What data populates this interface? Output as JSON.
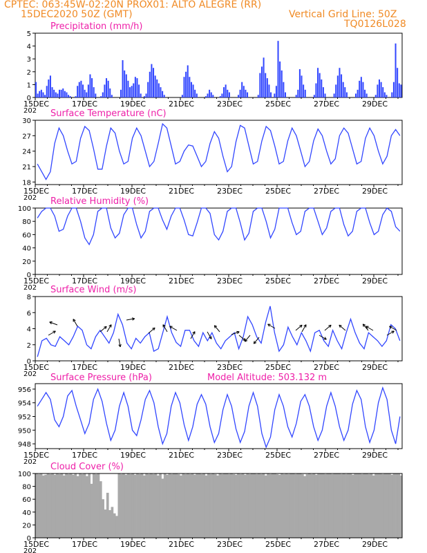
{
  "header": {
    "line1": "CPTEC:  063:45W-02:20N  PROX01: ALTO ALEGRE (RR)",
    "line2": "15DEC2020 50Z (GMT)",
    "grid_note": "Vertical Grid Line: 50Z",
    "code": "TQ0126L028"
  },
  "x_axis": {
    "labels": [
      "15DEC",
      "17DEC",
      "19DEC",
      "21DEC",
      "23DEC",
      "25DEC",
      "27DEC",
      "29DEC"
    ],
    "sub_label": "202"
  },
  "colors": {
    "series": "#3146ff",
    "title": "#ee1fa8",
    "header": "#f08a24",
    "cloud": "#a9a9a9"
  },
  "chart_data": [
    {
      "type": "bar",
      "title": "Precipitation (mm/h)",
      "ylim": [
        0,
        5
      ],
      "yticks": [
        0,
        1,
        2,
        3,
        4,
        5
      ],
      "x_range": [
        "15DEC",
        "30DEC"
      ],
      "values": [
        1.2,
        0.3,
        0.5,
        0.6,
        0.4,
        0.2,
        0.9,
        1.4,
        1.7,
        0.8,
        0.6,
        0.4,
        0.3,
        0.6,
        0.6,
        0.7,
        0.5,
        0.4,
        0.2,
        0.1,
        0.0,
        0.0,
        0.1,
        0.9,
        1.2,
        1.3,
        1.0,
        0.6,
        0.4,
        1.0,
        1.8,
        1.5,
        0.8,
        0.3,
        0.0,
        0.0,
        0.1,
        0.4,
        1.0,
        1.5,
        1.3,
        0.7,
        0.2,
        0.0,
        0.0,
        0.0,
        0.0,
        0.6,
        2.9,
        2.1,
        1.8,
        1.3,
        0.8,
        0.9,
        1.1,
        1.6,
        1.5,
        1.0,
        0.3,
        0.0,
        0.1,
        0.3,
        1.2,
        2.0,
        2.6,
        2.3,
        1.7,
        1.4,
        1.1,
        0.8,
        0.5,
        0.2,
        0.0,
        0.0,
        0.0,
        0.0,
        0.0,
        0.0,
        0.0,
        0.0,
        0.0,
        0.2,
        1.6,
        2.0,
        2.5,
        1.6,
        1.2,
        1.0,
        0.6,
        0.3,
        0.0,
        0.0,
        0.0,
        0.0,
        0.1,
        0.3,
        0.6,
        0.4,
        0.2,
        0.0,
        0.0,
        0.0,
        0.1,
        0.3,
        0.8,
        1.0,
        0.6,
        0.4,
        0.0,
        0.0,
        0.0,
        0.0,
        0.2,
        0.6,
        1.2,
        0.9,
        0.6,
        0.4,
        0.0,
        0.0,
        0.0,
        0.0,
        0.0,
        0.2,
        1.9,
        2.4,
        3.1,
        1.9,
        1.5,
        1.0,
        0.4,
        0.0,
        0.3,
        0.9,
        4.4,
        2.8,
        2.1,
        1.2,
        0.4,
        0.0,
        0.0,
        0.0,
        0.0,
        0.0,
        0.2,
        0.6,
        2.2,
        1.7,
        1.0,
        0.6,
        0.0,
        0.0,
        0.0,
        0.0,
        0.2,
        1.1,
        2.3,
        1.9,
        1.4,
        0.8,
        0.3,
        0.0,
        0.0,
        0.0,
        0.0,
        0.3,
        1.0,
        1.7,
        2.3,
        1.8,
        1.2,
        0.8,
        0.4,
        0.0,
        0.0,
        0.0,
        0.0,
        0.3,
        0.6,
        1.3,
        1.6,
        1.2,
        0.6,
        0.3,
        0.0,
        0.0,
        0.0,
        0.0,
        0.2,
        1.0,
        1.4,
        1.2,
        0.8,
        0.4,
        0.2,
        0.0,
        0.0,
        0.4,
        1.2,
        4.2,
        2.3,
        1.1,
        1.0
      ]
    },
    {
      "type": "line",
      "title": "Surface Temperature (nC)",
      "ylim": [
        17.5,
        30
      ],
      "yticks": [
        18,
        21,
        24,
        27,
        30
      ],
      "x_range": [
        "15DEC",
        "30DEC"
      ],
      "values": [
        21.5,
        20,
        18.5,
        20,
        25.5,
        28.5,
        27,
        24,
        21.5,
        22,
        26.5,
        28.8,
        28,
        24.5,
        20.5,
        20.5,
        25,
        28.5,
        27.5,
        24,
        21.5,
        22,
        26.5,
        28.5,
        27,
        24,
        21,
        22,
        25.5,
        29.3,
        28.5,
        25,
        21.5,
        22,
        24,
        25.2,
        25,
        23,
        21,
        22,
        25.5,
        27.8,
        26.5,
        23,
        20,
        21,
        25.8,
        29,
        28.5,
        25,
        21.5,
        22,
        26,
        28.8,
        28,
        25,
        21.5,
        22,
        26,
        28.5,
        27,
        24,
        21,
        22,
        26,
        28.3,
        27,
        24,
        21.5,
        22.5,
        27,
        28.5,
        27.5,
        24.5,
        21.5,
        22,
        26.5,
        28.5,
        27,
        24,
        21.5,
        23,
        27,
        28.2,
        27
      ]
    },
    {
      "type": "line",
      "title": "Relative Humidity (%)",
      "ylim": [
        0,
        100
      ],
      "yticks": [
        0,
        20,
        40,
        60,
        80,
        100
      ],
      "x_range": [
        "15DEC",
        "30DEC"
      ],
      "values": [
        85,
        95,
        100,
        100,
        88,
        65,
        68,
        88,
        100,
        100,
        80,
        55,
        45,
        60,
        95,
        100,
        100,
        70,
        55,
        62,
        90,
        100,
        100,
        75,
        55,
        65,
        95,
        100,
        100,
        82,
        68,
        88,
        100,
        100,
        82,
        60,
        58,
        78,
        100,
        100,
        92,
        60,
        52,
        65,
        95,
        100,
        100,
        78,
        52,
        62,
        95,
        100,
        100,
        80,
        55,
        68,
        100,
        100,
        100,
        78,
        60,
        65,
        95,
        100,
        100,
        80,
        60,
        70,
        95,
        100,
        100,
        75,
        58,
        65,
        95,
        100,
        100,
        78,
        60,
        65,
        90,
        100,
        95,
        72,
        65
      ]
    },
    {
      "type": "line",
      "title": "Surface Wind (m/s)",
      "ylim": [
        0,
        8
      ],
      "yticks": [
        0,
        2,
        4,
        6,
        8
      ],
      "x_range": [
        "15DEC",
        "30DEC"
      ],
      "values": [
        0.5,
        2.5,
        2.8,
        2,
        1.8,
        3,
        2.5,
        2,
        3,
        4.3,
        3.8,
        2,
        1.5,
        3,
        3.8,
        3,
        2.2,
        3.5,
        5.8,
        4.5,
        2.2,
        1.5,
        2.8,
        2.2,
        3,
        3.5,
        1.2,
        1.5,
        3.5,
        5.5,
        3.5,
        2.3,
        1.8,
        3.8,
        3.8,
        2.5,
        1.8,
        3.5,
        2.5,
        3.5,
        2.2,
        1.5,
        2.5,
        3,
        3.5,
        1.5,
        3,
        5.5,
        4.5,
        3,
        2.2,
        4.8,
        6.8,
        3.5,
        1.2,
        2,
        4.2,
        3,
        2,
        3.5,
        2.5,
        1.2,
        3.5,
        3.8,
        2.5,
        1.8,
        3.8,
        2.5,
        1.5,
        3.5,
        5.2,
        3.5,
        2.2,
        1.5,
        3.5,
        3,
        2.5,
        1.8,
        2.5,
        4.5,
        4,
        2.5
      ]
    },
    {
      "type": "line",
      "title": "Surface Pressure (hPa)",
      "annotation": "Model Altitude: 503.132 m",
      "ylim": [
        947.3,
        956.8
      ],
      "yticks": [
        948,
        950,
        952,
        954,
        956
      ],
      "x_range": [
        "15DEC",
        "30DEC"
      ],
      "values": [
        953.5,
        954.5,
        955.5,
        954.5,
        951.5,
        950.5,
        952,
        955,
        955.8,
        953.5,
        951.5,
        949.5,
        951,
        954.5,
        956,
        954.2,
        951,
        948.5,
        950,
        953.5,
        955.5,
        953.5,
        950,
        949.2,
        951.5,
        954.5,
        955.8,
        954,
        950.5,
        948,
        949.5,
        953.5,
        955.5,
        954,
        950.8,
        948.5,
        950.5,
        953.8,
        955.2,
        953.8,
        950.5,
        948.2,
        949.5,
        953,
        955.2,
        953.5,
        950.2,
        948.2,
        949.8,
        953.5,
        955.5,
        953.5,
        949.5,
        947.5,
        949,
        953,
        955.2,
        953.5,
        950.5,
        949,
        951,
        954.2,
        955.2,
        953.5,
        950.5,
        948.5,
        950,
        953.5,
        955.5,
        953.5,
        950.5,
        948.5,
        950,
        953.8,
        955.8,
        954.5,
        950.5,
        948.2,
        950,
        954,
        956.2,
        954.5,
        950,
        948,
        952
      ]
    },
    {
      "type": "area",
      "title": "Cloud Cover (%)",
      "ylim": [
        0,
        100
      ],
      "yticks": [
        0,
        20,
        40,
        60,
        80,
        100
      ],
      "x_range": [
        "15DEC",
        "30DEC"
      ],
      "values": [
        100,
        99,
        100,
        97,
        98,
        100,
        99,
        100,
        98,
        100,
        99,
        100,
        97,
        100,
        99,
        100,
        98,
        100,
        96,
        100,
        99,
        100,
        96,
        100,
        84,
        100,
        99,
        100,
        88,
        60,
        44,
        70,
        43,
        48,
        38,
        34,
        100,
        99,
        100,
        98,
        100,
        99,
        100,
        98,
        100,
        99,
        100,
        97,
        100,
        99,
        100,
        99,
        100,
        97,
        100,
        92,
        100,
        98,
        100,
        99,
        100,
        100,
        99,
        97,
        100,
        99,
        100,
        99,
        100,
        98,
        100,
        100,
        99,
        100,
        97,
        100,
        99,
        100,
        99,
        97,
        100,
        99,
        100,
        100,
        99,
        100,
        99,
        98,
        100,
        99,
        100,
        98,
        100,
        99,
        100,
        100,
        99,
        100,
        99,
        100,
        97,
        100,
        99,
        100,
        100,
        99,
        98,
        100,
        99,
        100,
        99,
        100,
        100,
        99,
        100,
        100,
        99,
        96,
        99,
        100,
        99,
        100,
        98,
        100,
        100,
        100,
        99,
        100,
        100,
        99,
        100,
        100,
        100,
        99,
        100,
        99,
        100,
        100,
        98,
        100,
        100,
        100,
        99,
        100,
        100,
        99,
        100,
        97,
        100,
        100,
        100,
        99,
        100,
        100,
        100,
        98,
        100,
        100,
        100,
        97
      ]
    }
  ]
}
